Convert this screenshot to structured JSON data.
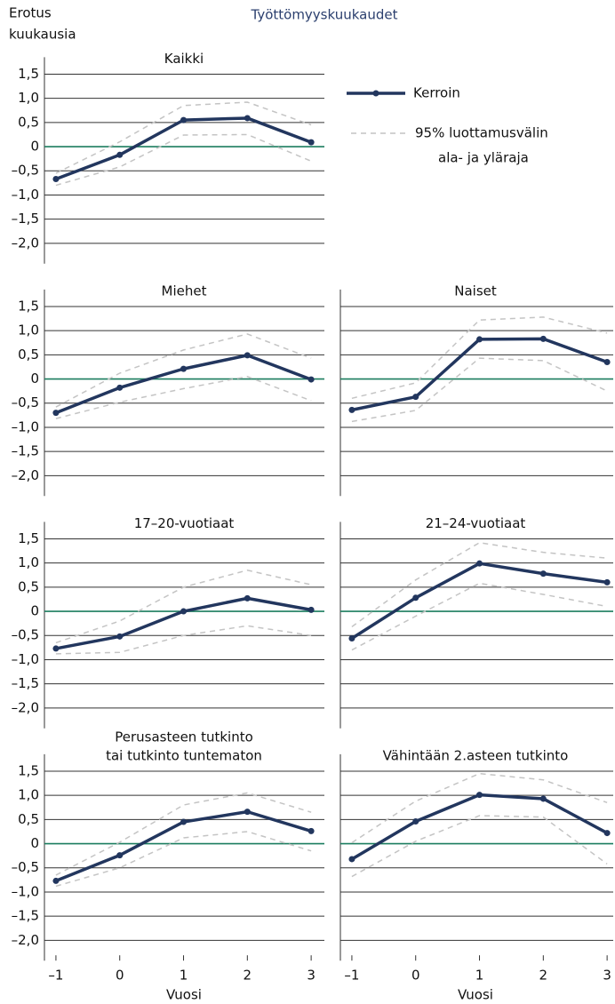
{
  "title": "Työttömyyskuukaudet",
  "y_label": [
    "Erotus",
    "kuukausia"
  ],
  "x_label": "Vuosi",
  "legend": {
    "line": "Kerroin",
    "band": [
      "95% luottamusvälin",
      "ala- ja yläraja"
    ]
  },
  "colors": {
    "line": "#22365e",
    "band": "#c4c4c4",
    "zero": "#1b7d5f"
  },
  "chart_data": [
    {
      "type": "line",
      "title": [
        "Kaikki"
      ],
      "x": [
        -1,
        0,
        1,
        2,
        3
      ],
      "values": [
        -0.67,
        -0.17,
        0.55,
        0.59,
        0.09
      ],
      "lower": [
        -0.8,
        -0.42,
        0.24,
        0.25,
        -0.3
      ],
      "upper": [
        -0.55,
        0.1,
        0.85,
        0.92,
        0.45
      ],
      "xlim": [
        -1.18,
        3.2
      ],
      "ylim": [
        -2.42,
        1.85
      ],
      "yticks": [
        {
          "value": 1.5,
          "label": "1,5"
        },
        {
          "value": 1,
          "label": "1,0"
        },
        {
          "value": 0.5,
          "label": "0,5"
        },
        0,
        {
          "value": -0.5,
          "label": "–0,5"
        },
        {
          "value": -1,
          "label": "–1,0"
        },
        {
          "value": -1.5,
          "label": "–1,5"
        },
        {
          "value": -2,
          "label": "–2,0"
        }
      ]
    },
    {
      "type": "line",
      "title": [
        "Miehet"
      ],
      "x": [
        -1,
        0,
        1,
        2,
        3
      ],
      "values": [
        -0.7,
        -0.18,
        0.21,
        0.49,
        -0.01
      ],
      "lower": [
        -0.82,
        -0.48,
        -0.2,
        0.05,
        -0.45
      ],
      "upper": [
        -0.58,
        0.12,
        0.6,
        0.93,
        0.43
      ],
      "xlim": [
        -1.18,
        3.2
      ],
      "ylim": [
        -2.42,
        1.85
      ],
      "yticks": [
        {
          "value": 1.5,
          "label": "1,5"
        },
        {
          "value": 1,
          "label": "1,0"
        },
        {
          "value": 0.5,
          "label": "0,5"
        },
        0,
        {
          "value": -0.5,
          "label": "–0,5"
        },
        {
          "value": -1,
          "label": "–1,0"
        },
        {
          "value": -1.5,
          "label": "–1,5"
        },
        {
          "value": -2,
          "label": "–2,0"
        }
      ]
    },
    {
      "type": "line",
      "title": [
        "Naiset"
      ],
      "x": [
        -1,
        0,
        1,
        2,
        3
      ],
      "values": [
        -0.64,
        -0.37,
        0.82,
        0.83,
        0.35
      ],
      "lower": [
        -0.88,
        -0.65,
        0.43,
        0.38,
        -0.25
      ],
      "upper": [
        -0.4,
        -0.08,
        1.22,
        1.28,
        0.95
      ],
      "xlim": [
        -1.18,
        3.2
      ],
      "ylim": [
        -2.42,
        1.85
      ],
      "yticks": [
        1.5,
        1,
        0.5,
        0,
        -0.5,
        -1,
        -1.5,
        -2
      ]
    },
    {
      "type": "line",
      "title": [
        "17–20-vuotiaat"
      ],
      "x": [
        -1,
        0,
        1,
        2,
        3
      ],
      "values": [
        -0.77,
        -0.52,
        0.0,
        0.27,
        0.03
      ],
      "lower": [
        -0.88,
        -0.85,
        -0.5,
        -0.3,
        -0.5
      ],
      "upper": [
        -0.65,
        -0.2,
        0.5,
        0.85,
        0.55
      ],
      "xlim": [
        -1.18,
        3.2
      ],
      "ylim": [
        -2.42,
        1.85
      ],
      "yticks": [
        {
          "value": 1.5,
          "label": "1,5"
        },
        {
          "value": 1,
          "label": "1,0"
        },
        {
          "value": 0.5,
          "label": "0,5"
        },
        0,
        {
          "value": -0.5,
          "label": "–0,5"
        },
        {
          "value": -1,
          "label": "–1,0"
        },
        {
          "value": -1.5,
          "label": "–1,5"
        },
        {
          "value": -2,
          "label": "–2,0"
        }
      ]
    },
    {
      "type": "line",
      "title": [
        "21–24-vuotiaat"
      ],
      "x": [
        -1,
        0,
        1,
        2,
        3
      ],
      "values": [
        -0.56,
        0.28,
        0.99,
        0.78,
        0.6
      ],
      "lower": [
        -0.8,
        -0.1,
        0.58,
        0.35,
        0.1
      ],
      "upper": [
        -0.32,
        0.65,
        1.42,
        1.22,
        1.1
      ],
      "xlim": [
        -1.18,
        3.2
      ],
      "ylim": [
        -2.42,
        1.85
      ],
      "yticks": [
        1.5,
        1,
        0.5,
        0,
        -0.5,
        -1,
        -1.5,
        -2
      ]
    },
    {
      "type": "line",
      "title": [
        "Perusasteen tutkinto",
        "tai tutkinto tuntematon"
      ],
      "x": [
        -1,
        0,
        1,
        2,
        3
      ],
      "values": [
        -0.77,
        -0.24,
        0.45,
        0.66,
        0.26
      ],
      "lower": [
        -0.88,
        -0.5,
        0.12,
        0.25,
        -0.15
      ],
      "upper": [
        -0.65,
        0.03,
        0.8,
        1.05,
        0.65
      ],
      "xlim": [
        -1.18,
        3.2
      ],
      "ylim": [
        -2.42,
        1.85
      ],
      "xticks": [
        {
          "value": -1,
          "label": "–1"
        },
        0,
        1,
        2,
        3
      ],
      "yticks": [
        {
          "value": 1.5,
          "label": "1,5"
        },
        {
          "value": 1,
          "label": "1,0"
        },
        {
          "value": 0.5,
          "label": "0,5"
        },
        0,
        {
          "value": -0.5,
          "label": "–0,5"
        },
        {
          "value": -1,
          "label": "–1,0"
        },
        {
          "value": -1.5,
          "label": "–1,5"
        },
        {
          "value": -2,
          "label": "–2,0"
        }
      ]
    },
    {
      "type": "line",
      "title": [
        "Vähintään 2.asteen tutkinto"
      ],
      "x": [
        -1,
        0,
        1,
        2,
        3
      ],
      "values": [
        -0.32,
        0.46,
        1.01,
        0.93,
        0.22
      ],
      "lower": [
        -0.68,
        0.05,
        0.58,
        0.55,
        -0.42
      ],
      "upper": [
        0.02,
        0.88,
        1.45,
        1.32,
        0.85
      ],
      "xlim": [
        -1.18,
        3.2
      ],
      "ylim": [
        -2.42,
        1.85
      ],
      "xticks": [
        {
          "value": -1,
          "label": "–1"
        },
        0,
        1,
        2,
        3
      ],
      "yticks": [
        1.5,
        1,
        0.5,
        0,
        -0.5,
        -1,
        -1.5,
        -2
      ]
    }
  ]
}
